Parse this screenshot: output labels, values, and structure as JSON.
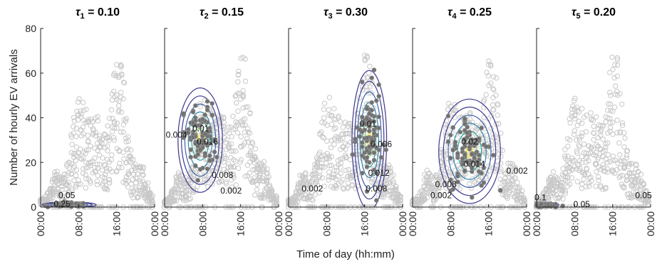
{
  "chart_data": {
    "type": "scatter",
    "title": "",
    "xlabel": "Time of day (hh:mm)",
    "ylabel": "Number of hourly EV arrivals",
    "ylim": [
      0,
      80
    ],
    "yticks": [
      0,
      20,
      40,
      60,
      80
    ],
    "xticks": [
      "00:00",
      "08:00",
      "16:00",
      "00:00"
    ],
    "xlim_hours": [
      0,
      24
    ],
    "grid": false,
    "colors": {
      "background_points": "#c8c8c8",
      "cluster_points": "#707070",
      "contour_low": "#3d3a8f",
      "contour_mid": "#2aa8a0",
      "contour_high": "#f1e24a"
    },
    "panels": [
      {
        "id": "p1",
        "title_symbol": "τ",
        "title_sub": "1",
        "title_value": " = 0.10",
        "cluster": {
          "center_hour": 6.0,
          "center_count": 1.0,
          "sd_hour": 2.2,
          "sd_count": 0.5
        },
        "contour_labels": [
          {
            "text": "0.05",
            "hour": 5.5,
            "count": 4.0
          },
          {
            "text": "0.25",
            "hour": 4.5,
            "count": 0.2
          }
        ]
      },
      {
        "id": "p2",
        "title_symbol": "τ",
        "title_sub": "2",
        "title_value": " = 0.15",
        "cluster": {
          "center_hour": 7.5,
          "center_count": 30.0,
          "sd_hour": 1.8,
          "sd_count": 9.0
        },
        "contour_labels": [
          {
            "text": "0.004",
            "hour": 2.5,
            "count": 31.0
          },
          {
            "text": "0.01",
            "hour": 7.6,
            "count": 34.0
          },
          {
            "text": "0.016",
            "hour": 9.0,
            "count": 28.0
          },
          {
            "text": "0.008",
            "hour": 12.2,
            "count": 13.0
          },
          {
            "text": "0.002",
            "hour": 14.0,
            "count": 6.0
          }
        ]
      },
      {
        "id": "p3",
        "title_symbol": "τ",
        "title_sub": "3",
        "title_value": " = 0.30",
        "cluster": {
          "center_hour": 17.0,
          "center_count": 30.0,
          "sd_hour": 1.4,
          "sd_count": 12.0
        },
        "contour_labels": [
          {
            "text": "0.002",
            "hour": 5.0,
            "count": 7.0
          },
          {
            "text": "0.01",
            "hour": 16.7,
            "count": 36.0
          },
          {
            "text": "0.006",
            "hour": 19.5,
            "count": 27.0
          },
          {
            "text": "0.012",
            "hour": 19.0,
            "count": 14.0
          },
          {
            "text": "0.008",
            "hour": 18.5,
            "count": 7.0
          }
        ]
      },
      {
        "id": "p4",
        "title_symbol": "τ",
        "title_sub": "4",
        "title_value": " = 0.25",
        "cluster": {
          "center_hour": 12.0,
          "center_count": 25.0,
          "sd_hour": 2.5,
          "sd_count": 9.0
        },
        "contour_labels": [
          {
            "text": "0.02",
            "hour": 12.0,
            "count": 28.0
          },
          {
            "text": "0.014",
            "hour": 13.0,
            "count": 18.0
          },
          {
            "text": "0.008",
            "hour": 7.0,
            "count": 9.0
          },
          {
            "text": "0.002",
            "hour": 6.0,
            "count": 4.0
          },
          {
            "text": "0.002",
            "hour": 22.0,
            "count": 15.0
          }
        ]
      },
      {
        "id": "p5",
        "title_symbol": "τ",
        "title_sub": "5",
        "title_value": " = 0.20",
        "cluster": {
          "center_hour": 0.8,
          "center_count": 1.0,
          "sd_hour": 1.5,
          "sd_count": 0.5
        },
        "contour_labels": [
          {
            "text": "0.1",
            "hour": 0.8,
            "count": 3.0
          },
          {
            "text": "0.05",
            "hour": 9.5,
            "count": 0.0
          },
          {
            "text": "0.05",
            "hour": 22.5,
            "count": 4.0
          }
        ]
      }
    ]
  }
}
